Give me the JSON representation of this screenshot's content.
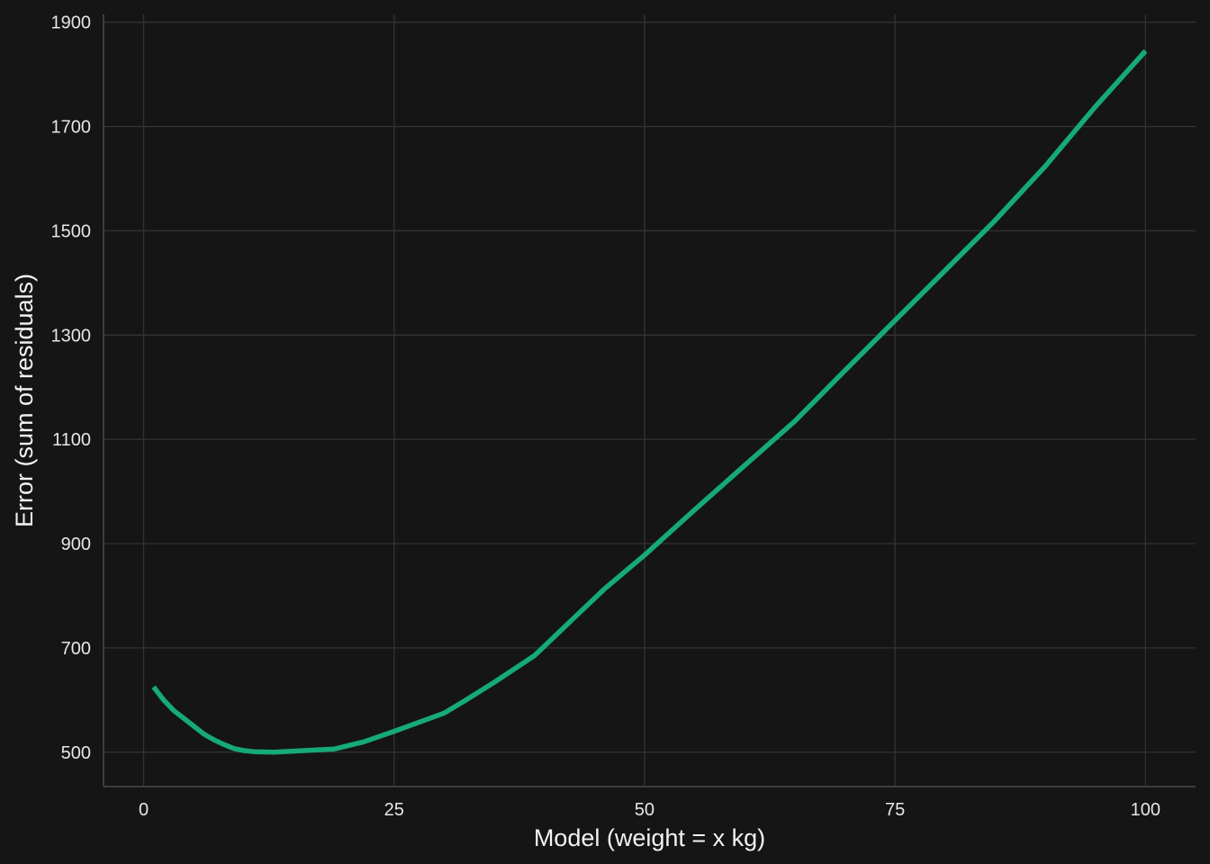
{
  "chart_data": {
    "type": "line",
    "title": "",
    "xlabel": "Model (weight = x kg)",
    "ylabel": "Error (sum of residuals)",
    "xlim": [
      -4,
      105
    ],
    "ylim": [
      434,
      1915
    ],
    "x_ticks": [
      0,
      25,
      50,
      75,
      100
    ],
    "y_ticks": [
      500,
      700,
      900,
      1100,
      1300,
      1500,
      1700,
      1900
    ],
    "grid": true,
    "line_color": "#16A97A",
    "series": [
      {
        "x": [
          1,
          2,
          3,
          4,
          5,
          6,
          7,
          8,
          9,
          10,
          11,
          13,
          16,
          19,
          22,
          25,
          28,
          30,
          32,
          35,
          39,
          42,
          46,
          50,
          55,
          60,
          65,
          70,
          75,
          80,
          85,
          90,
          95,
          100
        ],
        "y": [
          625,
          600,
          580,
          565,
          550,
          535,
          524,
          515,
          507,
          503,
          501,
          500,
          503,
          506,
          520,
          540,
          561,
          575,
          598,
          634,
          685,
          740,
          813,
          878,
          965,
          1050,
          1135,
          1232,
          1328,
          1424,
          1520,
          1624,
          1738,
          1845
        ]
      }
    ]
  }
}
